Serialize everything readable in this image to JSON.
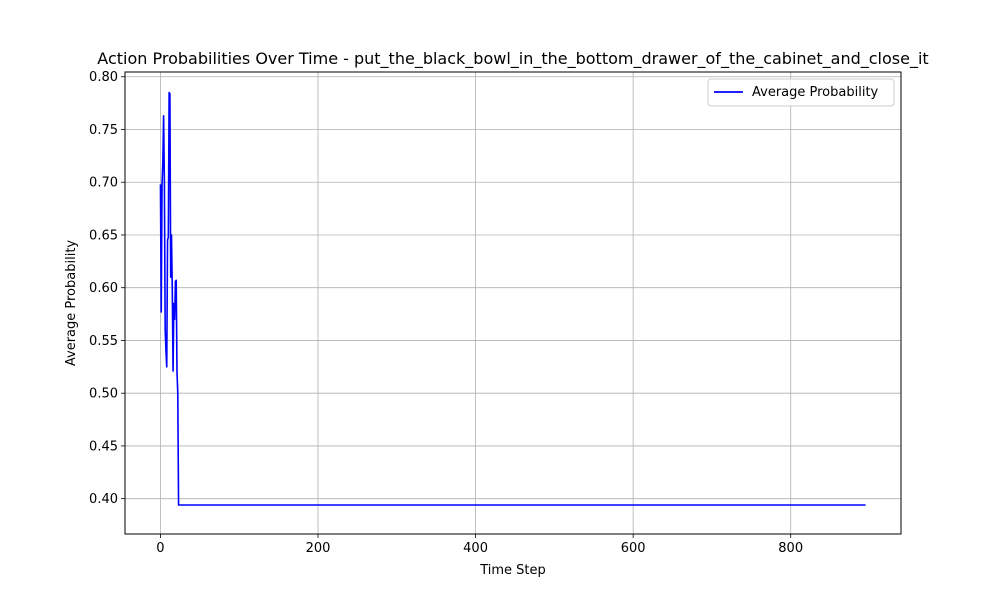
{
  "chart_data": {
    "type": "line",
    "title": "Action Probabilities Over Time - put_the_black_bowl_in_the_bottom_drawer_of_the_cabinet_and_close_it",
    "xlabel": "Time Step",
    "ylabel": "Average Probability",
    "xlim": [
      -45,
      940
    ],
    "ylim": [
      0.3665,
      0.8045
    ],
    "xticks": [
      0,
      200,
      400,
      600,
      800
    ],
    "yticks": [
      0.4,
      0.45,
      0.5,
      0.55,
      0.6,
      0.65,
      0.7,
      0.75,
      0.8
    ],
    "xtick_labels": [
      "0",
      "200",
      "400",
      "600",
      "800"
    ],
    "ytick_labels": [
      "0.40",
      "0.45",
      "0.50",
      "0.55",
      "0.60",
      "0.65",
      "0.70",
      "0.75",
      "0.80"
    ],
    "grid": true,
    "legend_position": "top-right",
    "series": [
      {
        "name": "Average Probability",
        "color": "#0000ff",
        "x": [
          0,
          1,
          2,
          3,
          4,
          5,
          6,
          7,
          8,
          9,
          10,
          11,
          12,
          13,
          14,
          15,
          16,
          17,
          18,
          19,
          20,
          21,
          22,
          23,
          24,
          25,
          26,
          27,
          895
        ],
        "y": [
          0.698,
          0.577,
          0.698,
          0.718,
          0.763,
          0.7,
          0.56,
          0.54,
          0.525,
          0.645,
          0.648,
          0.785,
          0.784,
          0.61,
          0.65,
          0.6,
          0.521,
          0.585,
          0.57,
          0.606,
          0.607,
          0.52,
          0.5,
          0.394,
          0.394,
          0.394,
          0.394,
          0.394,
          0.394
        ]
      }
    ]
  }
}
